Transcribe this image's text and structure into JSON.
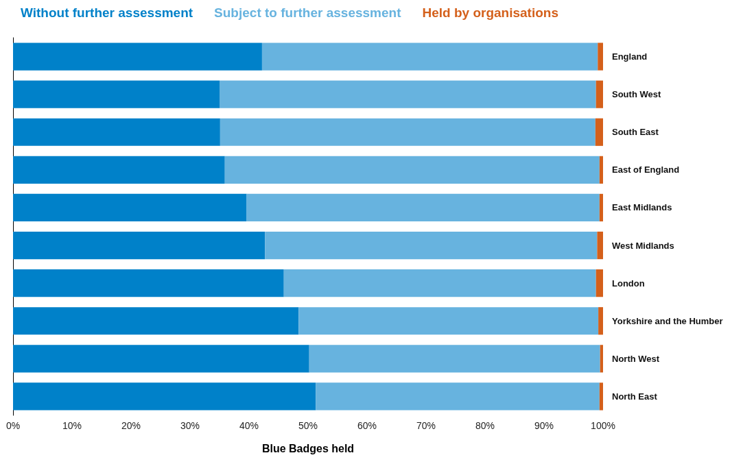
{
  "chart_data": {
    "type": "bar",
    "orientation": "horizontal",
    "stacked": true,
    "xlabel": "Blue Badges held",
    "legend": "top",
    "categories": [
      "England",
      "South West",
      "South East",
      "East of England",
      "East Midlands",
      "West Midlands",
      "London",
      "Yorkshire and the Humber",
      "North West",
      "North East"
    ],
    "series": [
      {
        "name": "Without further assessment",
        "color": "#0081c9",
        "values": [
          42.2,
          35.0,
          35.1,
          35.9,
          39.6,
          42.7,
          45.9,
          48.4,
          50.2,
          51.3
        ]
      },
      {
        "name": "Subject to further assessment",
        "color": "#67b3df",
        "values": [
          56.9,
          63.8,
          63.6,
          63.5,
          59.8,
          56.3,
          52.9,
          50.8,
          49.3,
          48.1
        ]
      },
      {
        "name": "Held by organisations",
        "color": "#d4601b",
        "values": [
          0.9,
          1.2,
          1.3,
          0.6,
          0.6,
          1.0,
          1.2,
          0.8,
          0.5,
          0.6
        ]
      }
    ],
    "xlim": [
      0,
      100
    ],
    "xticks": [
      {
        "value": 0,
        "label": "0%"
      },
      {
        "value": 10,
        "label": "10%"
      },
      {
        "value": 20,
        "label": "20%"
      },
      {
        "value": 30,
        "label": "30%"
      },
      {
        "value": 40,
        "label": "40%"
      },
      {
        "value": 50,
        "label": "50%"
      },
      {
        "value": 60,
        "label": "60%"
      },
      {
        "value": 70,
        "label": "70%"
      },
      {
        "value": 80,
        "label": "80%"
      },
      {
        "value": 90,
        "label": "90%"
      },
      {
        "value": 100,
        "label": "100%"
      }
    ],
    "grid": false
  }
}
